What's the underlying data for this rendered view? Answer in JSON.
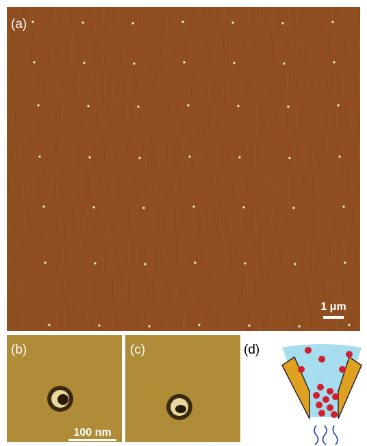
{
  "panels": [
    {
      "label": "(a)",
      "scale_bar": "1 μm"
    },
    {
      "label": "(b)",
      "scale_bar": "100 nm"
    },
    {
      "label": "(c)"
    },
    {
      "label": "(d)"
    }
  ]
}
